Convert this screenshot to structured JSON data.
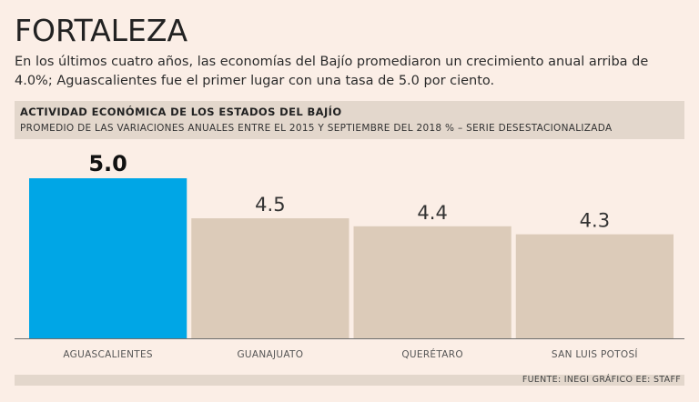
{
  "headline": "FORTALEZA",
  "intro": "En los últimos cuatro años, las economías del Bajío promediaron un crecimiento anual arriba de 4.0%; Aguascalientes fue el primer lugar con una tasa de 5.0 por ciento.",
  "colors": {
    "highlight": "#00a6e6",
    "bar": "#dccbb9",
    "axis": "#6e6e6e"
  },
  "chart_data": {
    "type": "bar",
    "title": "ACTIVIDAD ECONÓMICA DE LOS ESTADOS DEL BAJÍO",
    "subtitle": "PROMEDIO DE LAS VARIACIONES ANUALES ENTRE EL 2015 Y SEPTIEMBRE DEL 2018 % – SERIE DESESTACIONALIZADA",
    "categories": [
      "AGUASCALIENTES",
      "GUANAJUATO",
      "QUERÉTARO",
      "SAN LUIS POTOSÍ"
    ],
    "values": [
      5.0,
      4.5,
      4.4,
      4.3
    ],
    "labels": [
      "5.0",
      "4.5",
      "4.4",
      "4.3"
    ],
    "highlight_index": 0,
    "ylim": [
      0,
      5.0
    ],
    "xlabel": "",
    "ylabel": ""
  },
  "source": "FUENTE: INEGI GRÁFICO EE: STAFF"
}
